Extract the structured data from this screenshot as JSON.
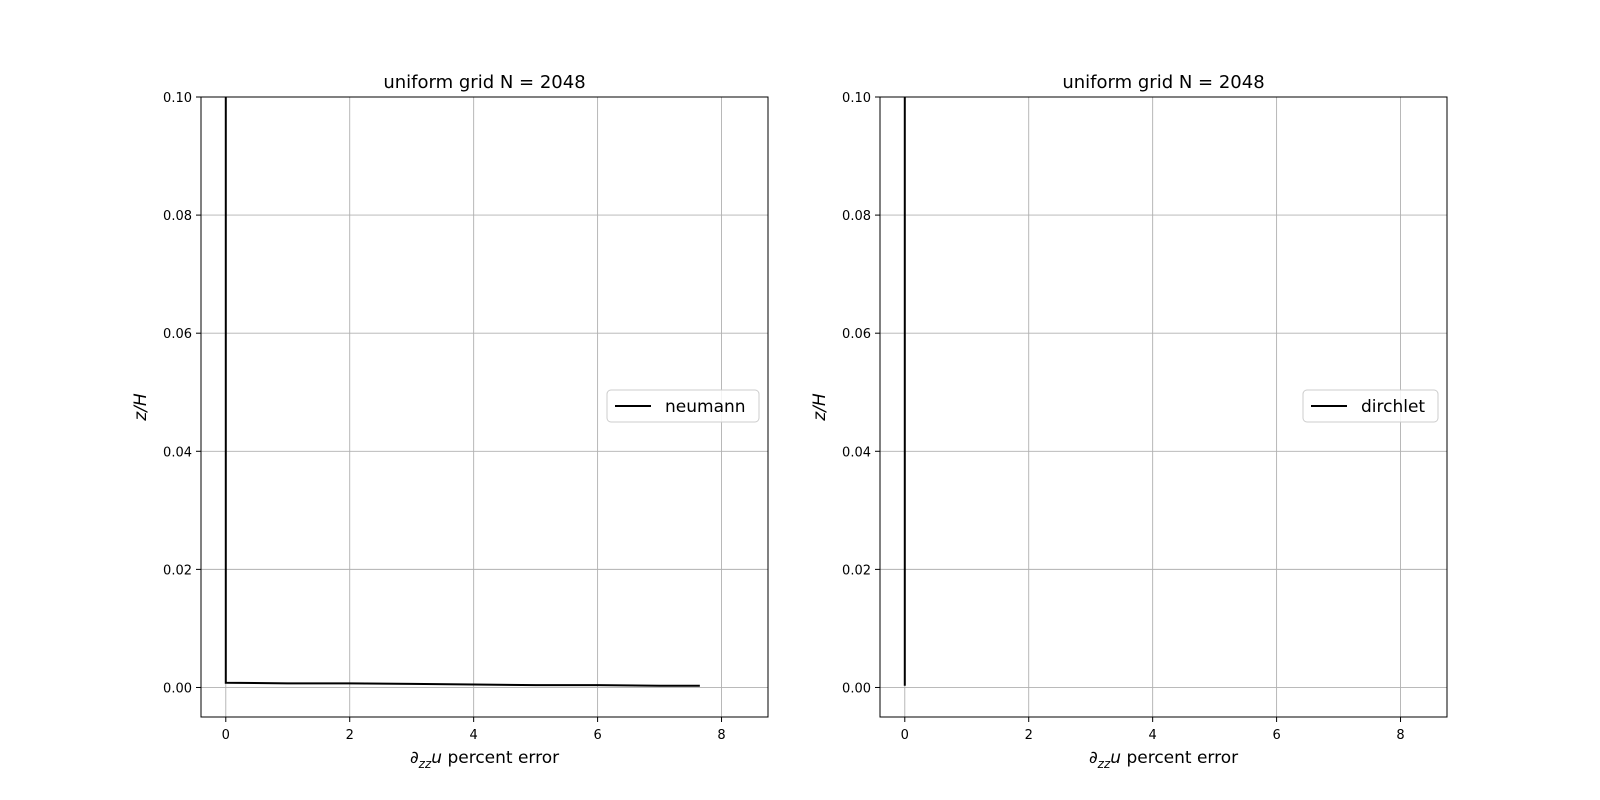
{
  "chart_data": [
    {
      "type": "line",
      "title": "uniform grid N = 2048",
      "xlabel": "∂zzu percent error",
      "xlabel_parts": {
        "sym": "∂",
        "sub": "zz",
        "var": "u",
        "rest": " percent error"
      },
      "ylabel": "z/H",
      "xlim": [
        -0.4,
        8.75
      ],
      "ylim": [
        -0.005,
        0.1
      ],
      "xticks": [
        0,
        2,
        4,
        6,
        8
      ],
      "xtick_labels": [
        "0",
        "2",
        "4",
        "6",
        "8"
      ],
      "yticks": [
        0.0,
        0.02,
        0.04,
        0.06,
        0.08,
        0.1
      ],
      "ytick_labels": [
        "0.00",
        "0.02",
        "0.04",
        "0.06",
        "0.08",
        "0.10"
      ],
      "grid": true,
      "legend_position": "center-right",
      "series": [
        {
          "name": "neumann",
          "color": "#000000",
          "x": [
            7.65,
            7.0,
            6.0,
            5.0,
            4.0,
            3.0,
            2.0,
            1.0,
            0.0,
            0.0
          ],
          "y": [
            0.0003,
            0.0003,
            0.0004,
            0.0004,
            0.0005,
            0.0006,
            0.0007,
            0.0007,
            0.0008,
            0.1
          ]
        }
      ]
    },
    {
      "type": "line",
      "title": "uniform grid N = 2048",
      "xlabel": "∂zzu percent error",
      "xlabel_parts": {
        "sym": "∂",
        "sub": "zz",
        "var": "u",
        "rest": " percent error"
      },
      "ylabel": "z/H",
      "xlim": [
        -0.4,
        8.75
      ],
      "ylim": [
        -0.005,
        0.1
      ],
      "xticks": [
        0,
        2,
        4,
        6,
        8
      ],
      "xtick_labels": [
        "0",
        "2",
        "4",
        "6",
        "8"
      ],
      "yticks": [
        0.0,
        0.02,
        0.04,
        0.06,
        0.08,
        0.1
      ],
      "ytick_labels": [
        "0.00",
        "0.02",
        "0.04",
        "0.06",
        "0.08",
        "0.10"
      ],
      "grid": true,
      "legend_position": "center-right",
      "series": [
        {
          "name": "dirchlet",
          "color": "#000000",
          "x": [
            0.0,
            0.0
          ],
          "y": [
            0.0003,
            0.1
          ]
        }
      ]
    }
  ]
}
